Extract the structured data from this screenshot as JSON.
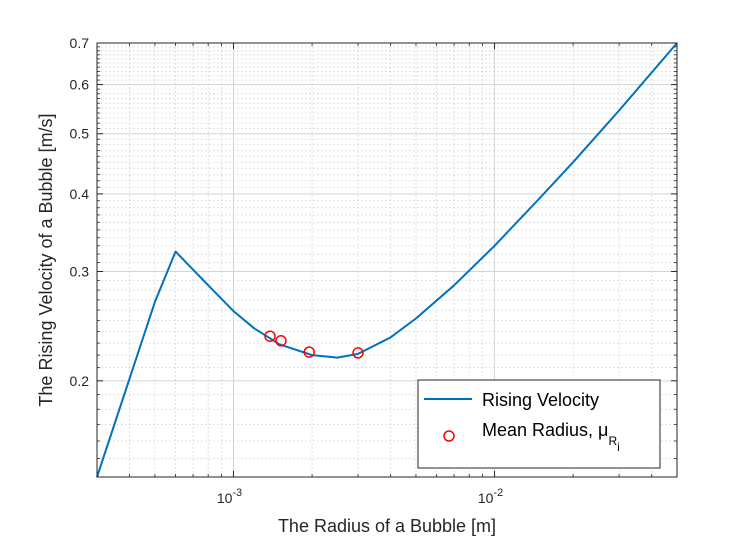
{
  "chart_data": {
    "type": "line",
    "xscale": "log",
    "yscale": "log",
    "xlim": [
      0.0003,
      0.05
    ],
    "ylim": [
      0.14,
      0.7
    ],
    "xlabel": "The Radius of a Bubble [m]",
    "ylabel": "The Rising Velocity of a Bubble [m/s]",
    "xticks": [
      {
        "value": 0.001,
        "base": "10",
        "exp": "-3"
      },
      {
        "value": 0.01,
        "base": "10",
        "exp": "-2"
      }
    ],
    "yticks": [
      {
        "value": 0.2,
        "label": "0.2"
      },
      {
        "value": 0.3,
        "label": "0.3"
      },
      {
        "value": 0.4,
        "label": "0.4"
      },
      {
        "value": 0.5,
        "label": "0.5"
      },
      {
        "value": 0.6,
        "label": "0.6"
      },
      {
        "value": 0.7,
        "label": "0.7"
      }
    ],
    "grid": true,
    "legend_position": "bottom-right",
    "series": [
      {
        "name": "Rising Velocity",
        "style": "line",
        "color": "#0072BD",
        "x": [
          0.0003,
          0.0005,
          0.0006,
          0.0008,
          0.001,
          0.0012,
          0.0015,
          0.002,
          0.0025,
          0.003,
          0.004,
          0.005,
          0.007,
          0.01,
          0.015,
          0.02,
          0.03,
          0.05
        ],
        "y": [
          0.14,
          0.268,
          0.323,
          0.285,
          0.259,
          0.243,
          0.229,
          0.22,
          0.218,
          0.221,
          0.235,
          0.252,
          0.285,
          0.33,
          0.395,
          0.45,
          0.545,
          0.7
        ]
      },
      {
        "name": "Mean Radius, μ",
        "name_sub": "R",
        "name_subsub": "i",
        "style": "marker",
        "marker": "circle",
        "color": "#FF0000",
        "x": [
          0.00138,
          0.00152,
          0.00195,
          0.003
        ],
        "y": [
          0.236,
          0.232,
          0.2225,
          0.2218
        ]
      }
    ]
  }
}
